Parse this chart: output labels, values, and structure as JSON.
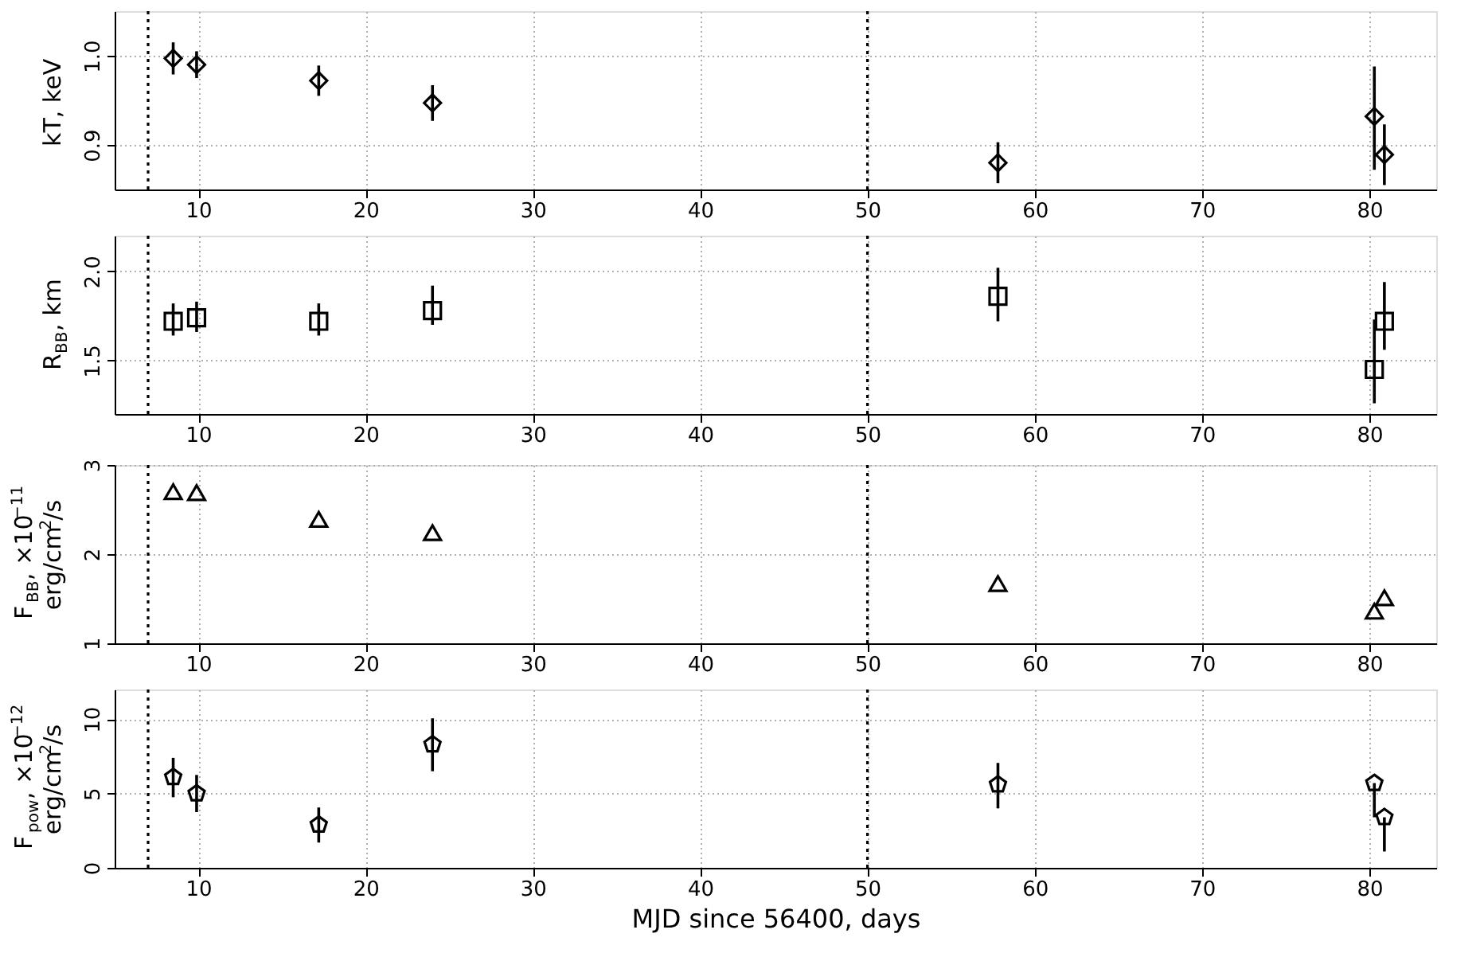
{
  "chart_data": [
    {
      "type": "scatter",
      "ylabel": "kT, keV",
      "x": [
        8.5,
        9.9,
        17.2,
        24.0,
        57.8,
        80.3,
        80.9
      ],
      "values": [
        0.997,
        0.99,
        0.972,
        0.947,
        0.88,
        0.932,
        0.889
      ],
      "errors": [
        0.018,
        0.015,
        0.017,
        0.02,
        0.023,
        [
          0.872,
          0.988
        ],
        [
          0.855,
          0.923
        ]
      ],
      "color": "#000000",
      "marker": "diamond",
      "xlim": [
        5,
        84
      ],
      "xticks": [
        10,
        20,
        30,
        40,
        50,
        60,
        70,
        80
      ],
      "ylim": [
        0.85,
        1.05
      ],
      "yticks": [
        {
          "value": 0.9,
          "label": "0.9"
        },
        {
          "value": 1.0,
          "label": "1.0"
        }
      ],
      "grid": true,
      "ref_lines": [
        {
          "axis": "x",
          "value": 7,
          "line_style": "dotted"
        },
        {
          "axis": "x",
          "value": 50,
          "line_style": "dotted"
        }
      ]
    },
    {
      "type": "scatter",
      "ylabel": "R$_{BB}$, km",
      "x": [
        8.5,
        9.9,
        17.2,
        24.0,
        57.8,
        80.3,
        80.9
      ],
      "values": [
        1.72,
        1.74,
        1.72,
        1.78,
        1.86,
        1.45,
        1.72
      ],
      "errors": [
        [
          1.64,
          1.82
        ],
        [
          1.66,
          1.83
        ],
        [
          1.64,
          1.82
        ],
        [
          1.7,
          1.92
        ],
        [
          1.72,
          2.02
        ],
        [
          1.26,
          1.73
        ],
        [
          1.56,
          1.94
        ]
      ],
      "color": "#000000",
      "marker": "square",
      "xlim": [
        5,
        84
      ],
      "xticks": [
        10,
        20,
        30,
        40,
        50,
        60,
        70,
        80
      ],
      "ylim": [
        1.2,
        2.2
      ],
      "yticks": [
        {
          "value": 1.5,
          "label": "1.5"
        },
        {
          "value": 2.0,
          "label": "2.0"
        }
      ],
      "grid": true,
      "ref_lines": [
        {
          "axis": "x",
          "value": 7,
          "line_style": "dotted"
        },
        {
          "axis": "x",
          "value": 50,
          "line_style": "dotted"
        }
      ]
    },
    {
      "type": "scatter",
      "ylabel": "F$_{BB}$, ×10$^{−11}$\nerg/cm$^{2}$/s",
      "x": [
        8.5,
        9.9,
        17.2,
        24.0,
        57.8,
        80.3,
        80.9
      ],
      "values": [
        2.7,
        2.69,
        2.39,
        2.24,
        1.67,
        1.36,
        1.51
      ],
      "color": "#000000",
      "marker": "triangle",
      "xlim": [
        5,
        84
      ],
      "xticks": [
        10,
        20,
        30,
        40,
        50,
        60,
        70,
        80
      ],
      "ylim": [
        1,
        3
      ],
      "yticks": [
        1,
        2,
        3
      ],
      "grid": true,
      "ref_lines": [
        {
          "axis": "x",
          "value": 7,
          "line_style": "dotted"
        },
        {
          "axis": "x",
          "value": 50,
          "line_style": "dotted"
        }
      ]
    },
    {
      "type": "scatter",
      "xlabel": "MJD since 56400, days",
      "ylabel": "F$_{pow}$, ×10$^{−12}$\nerg/cm$^{2}$/s",
      "x": [
        8.5,
        9.9,
        17.2,
        24.0,
        57.8,
        80.3,
        80.9
      ],
      "values": [
        6.1,
        5.0,
        2.9,
        8.3,
        5.6,
        5.7,
        3.4
      ],
      "errors": [
        [
          4.75,
          7.4
        ],
        [
          3.75,
          6.25
        ],
        [
          1.7,
          4.06
        ],
        [
          6.5,
          10.06
        ],
        [
          4.0,
          7.06
        ],
        [
          3.4,
          5.7
        ],
        [
          1.1,
          3.4
        ]
      ],
      "color": "#000000",
      "xlim": [
        5,
        84
      ],
      "xticks": [
        10,
        20,
        30,
        40,
        50,
        60,
        70,
        80
      ],
      "ylim": [
        0,
        12
      ],
      "yticks": [
        0,
        5,
        10
      ],
      "grid": true,
      "ref_lines": [
        {
          "axis": "x",
          "value": 7,
          "line_style": "dotted"
        },
        {
          "axis": "x",
          "value": 50,
          "line_style": "dotted"
        }
      ]
    }
  ]
}
